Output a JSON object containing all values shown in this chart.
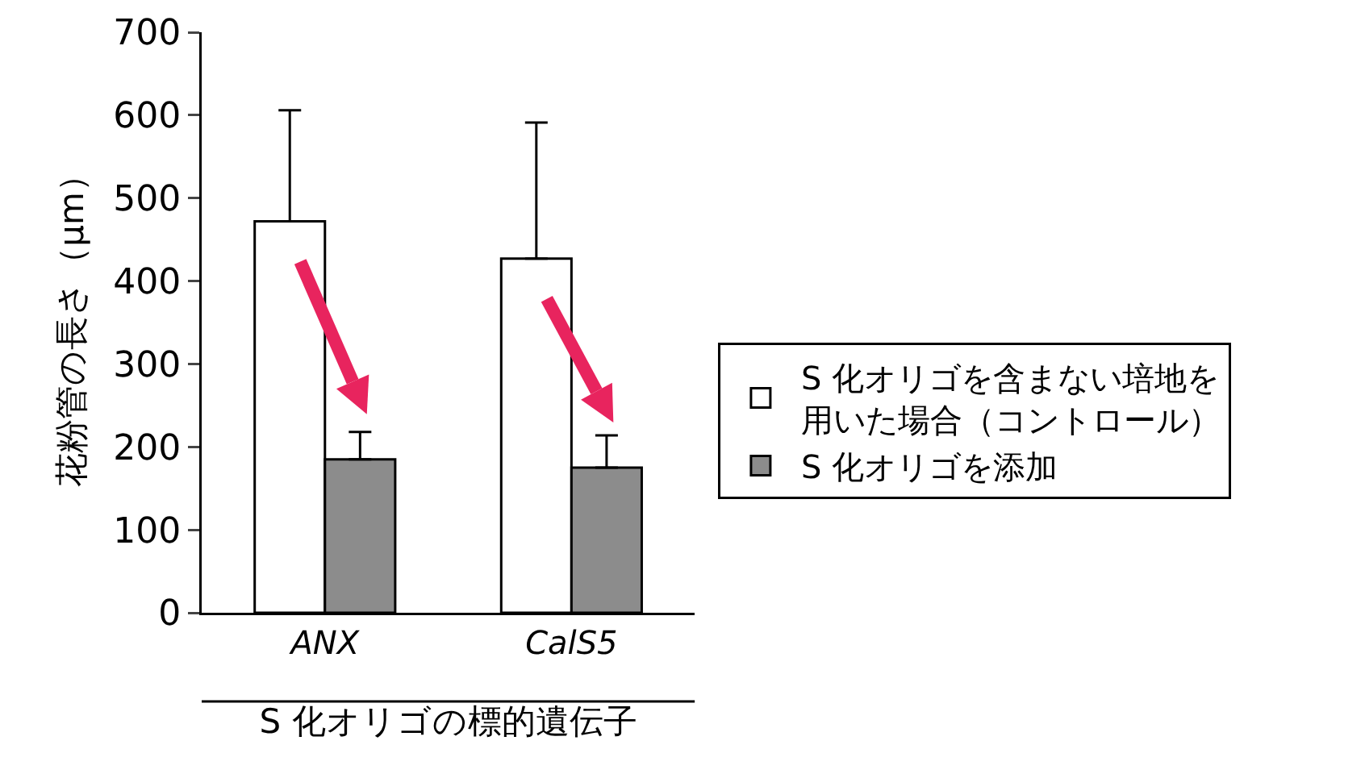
{
  "chart_data": {
    "type": "bar",
    "ylabel": "花粉管の長さ（μm）",
    "xlabel": "S 化オリゴの標的遺伝子",
    "categories": [
      "ANX",
      "CalS5"
    ],
    "series": [
      {
        "name": "S 化オリゴを含まない培地を用いた場合（コントロール）",
        "color": "#ffffff",
        "values": [
          472,
          427
        ],
        "errors": [
          [
            472,
            606
          ],
          [
            427,
            591
          ]
        ]
      },
      {
        "name": "S 化オリゴを添加",
        "color": "#8c8c8c",
        "values": [
          185,
          175
        ],
        "errors": [
          [
            185,
            218
          ],
          [
            175,
            214
          ]
        ]
      }
    ],
    "ylim": [
      0,
      700
    ],
    "yticks": [
      0,
      100,
      200,
      300,
      400,
      500,
      600,
      700
    ],
    "grid": false,
    "legend": "right"
  }
}
